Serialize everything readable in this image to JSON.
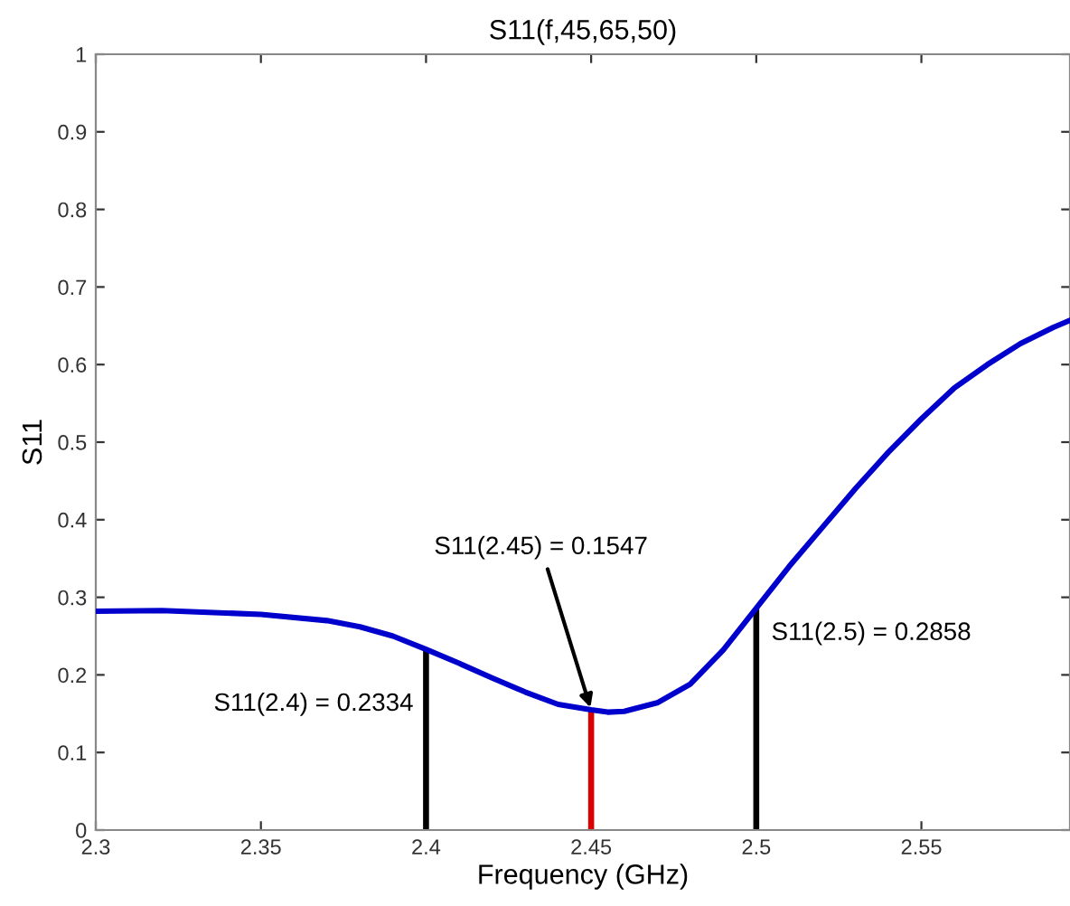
{
  "chart_data": {
    "type": "line",
    "title": "S11(f,45,65,50)",
    "xlabel": "Frequency (GHz)",
    "ylabel": "S11",
    "series": [
      {
        "color": "#0000cc",
        "x": [
          2.3,
          2.32,
          2.35,
          2.37,
          2.38,
          2.39,
          2.4,
          2.41,
          2.42,
          2.43,
          2.44,
          2.45,
          2.455,
          2.46,
          2.47,
          2.48,
          2.49,
          2.5,
          2.51,
          2.52,
          2.53,
          2.54,
          2.55,
          2.56,
          2.57,
          2.58,
          2.59,
          2.595
        ],
        "values": [
          0.282,
          0.283,
          0.278,
          0.27,
          0.262,
          0.25,
          0.233,
          0.215,
          0.196,
          0.178,
          0.162,
          0.155,
          0.152,
          0.153,
          0.164,
          0.188,
          0.232,
          0.286,
          0.34,
          0.39,
          0.44,
          0.487,
          0.53,
          0.57,
          0.6,
          0.627,
          0.648,
          0.657
        ]
      },
      {
        "type": "bar",
        "x": [
          2.4,
          2.45,
          2.5
        ],
        "values": [
          0.2334,
          0.1547,
          0.2858
        ],
        "colors": [
          "#000000",
          "#dd0000",
          "#000000"
        ]
      }
    ],
    "annotations": [
      {
        "text": "S11(2.4) = 0.2334",
        "x": 2.4,
        "y": 0.2334
      },
      {
        "text": "S11(2.45) = 0.1547",
        "x": 2.45,
        "y": 0.1547
      },
      {
        "text": "S11(2.5) = 0.2858",
        "x": 2.5,
        "y": 0.2858
      }
    ],
    "xlim": [
      2.3,
      2.595
    ],
    "ylim": [
      0,
      1
    ],
    "xticks": [
      2.3,
      2.35,
      2.4,
      2.45,
      2.5,
      2.55
    ],
    "yticks": [
      0,
      0.1,
      0.2,
      0.3,
      0.4,
      0.5,
      0.6,
      0.7,
      0.8,
      0.9,
      1
    ],
    "grid": false,
    "legend": false
  }
}
